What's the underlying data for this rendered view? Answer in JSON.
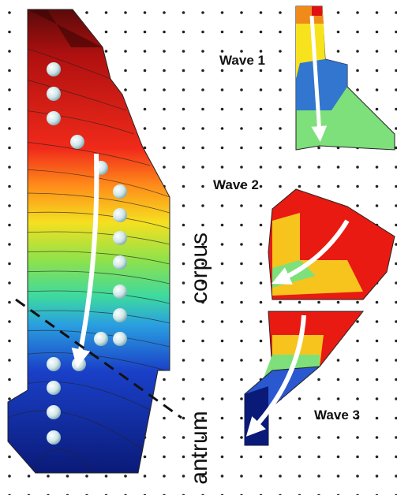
{
  "waves": [
    "Wave 1",
    "Wave 2",
    "Wave 3"
  ],
  "regions": {
    "corpus": "corpus",
    "antrum": "antrum"
  }
}
